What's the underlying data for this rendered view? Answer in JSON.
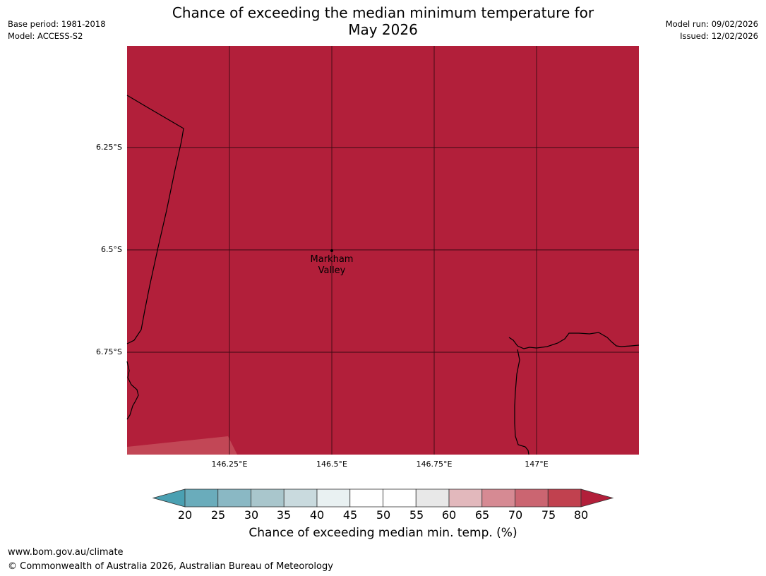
{
  "title": {
    "line1": "Chance of exceeding the median minimum temperature for",
    "line2": "May 2026"
  },
  "meta_left": {
    "base_period": "Base period: 1981-2018",
    "model": "Model: ACCESS-S2"
  },
  "meta_right": {
    "model_run": "Model run: 09/02/2026",
    "issued": "Issued: 12/02/2026"
  },
  "map": {
    "lat_labels": [
      "6.25°S",
      "6.5°S",
      "6.75°S"
    ],
    "lon_labels": [
      "146.25°E",
      "146.5°E",
      "146.75°E",
      "147°E"
    ],
    "place": {
      "name_line1": "Markham",
      "name_line2": "Valley"
    },
    "dominant_category": "80",
    "colors": {
      "dominant_fill": "#b21f3a",
      "corner_fill": "#c24756",
      "gridline": "#3a0a12",
      "coastline": "#000000"
    }
  },
  "colorbar": {
    "ticks": [
      "20",
      "25",
      "30",
      "35",
      "40",
      "45",
      "50",
      "55",
      "60",
      "65",
      "70",
      "75",
      "80"
    ],
    "colors": [
      "#4aa0b2",
      "#6aacbb",
      "#8ab8c4",
      "#a9c6cc",
      "#c9dade",
      "#e9f1f2",
      "#ffffff",
      "#ffffff",
      "#e8e8e8",
      "#e2b8bc",
      "#d68a93",
      "#cb6571",
      "#c1414f",
      "#b21f3a"
    ],
    "label": "Chance of exceeding median min. temp. (%)"
  },
  "footer": {
    "url": "www.bom.gov.au/climate",
    "copyright": "© Commonwealth of Australia 2026, Australian Bureau of Meteorology"
  }
}
